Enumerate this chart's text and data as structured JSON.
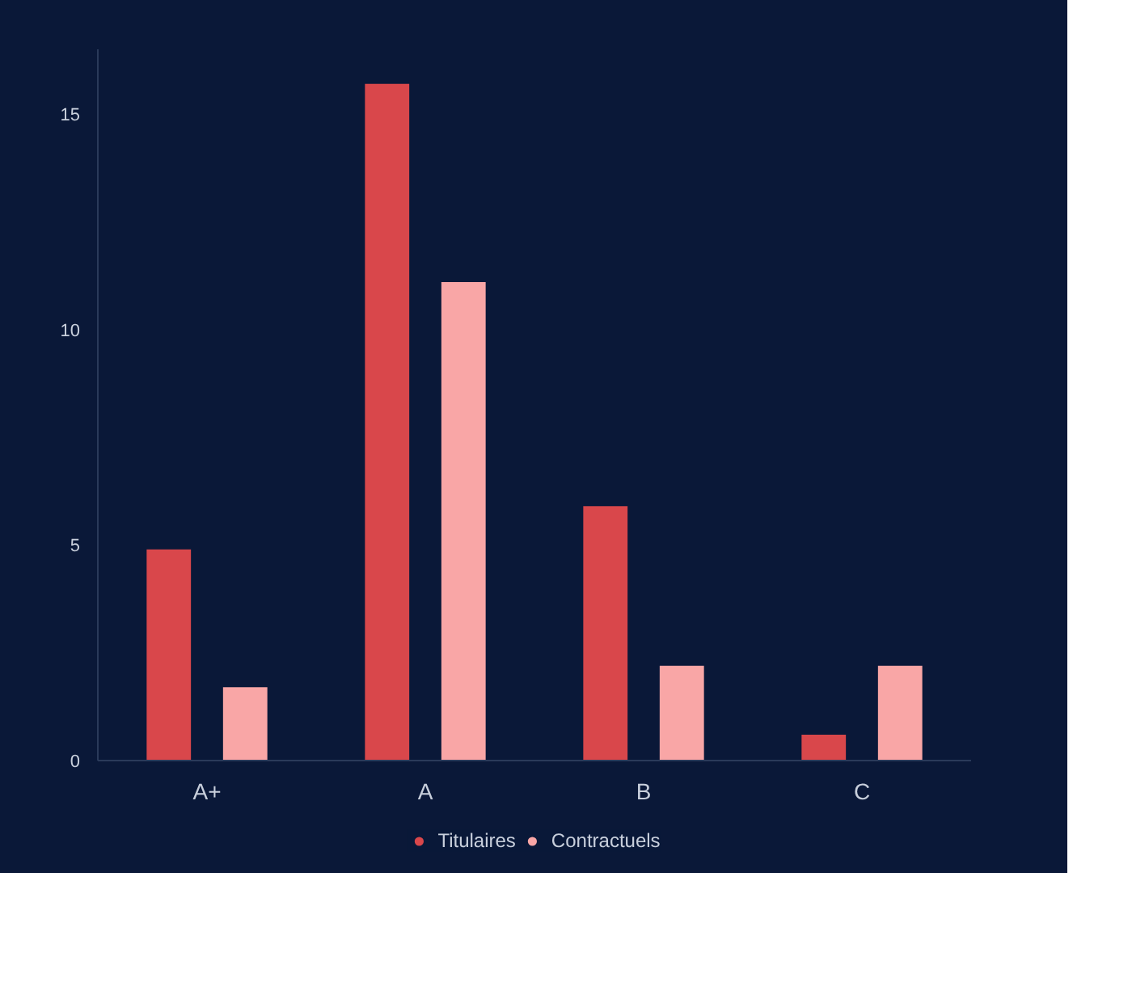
{
  "chart_data": {
    "type": "bar",
    "categories": [
      "A+",
      "A",
      "B",
      "C"
    ],
    "series": [
      {
        "name": "Titulaires",
        "color": "#d9474b",
        "values": [
          4.9,
          15.7,
          5.9,
          0.6
        ]
      },
      {
        "name": "Contractuels",
        "color": "#f9a6a6",
        "values": [
          1.7,
          11.1,
          2.2,
          2.2
        ]
      }
    ],
    "ylim": [
      0,
      16.5
    ],
    "yticks": [
      0,
      5,
      10,
      15
    ],
    "grid": false,
    "legend": "bottom"
  }
}
